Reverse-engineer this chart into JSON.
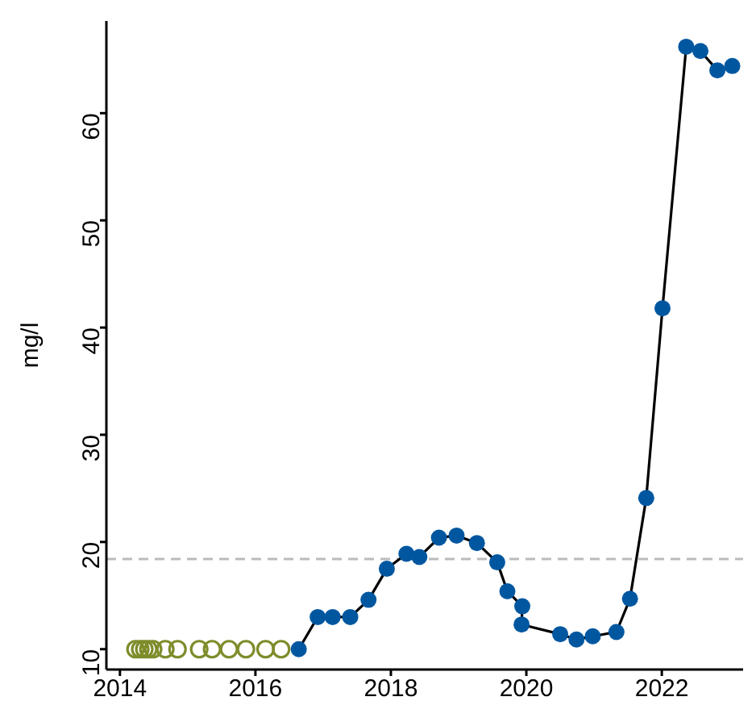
{
  "chart_data": {
    "type": "line",
    "ylabel": "mg/l",
    "xlim": [
      2013.8,
      2023.2
    ],
    "xticks": [
      2014,
      2016,
      2018,
      2020,
      2022
    ],
    "ylim": [
      8.1,
      68.6
    ],
    "yticks": [
      10,
      20,
      30,
      40,
      50,
      60
    ],
    "grid": false,
    "legend": false,
    "marker": "circle",
    "line_style": "solid",
    "series": [
      {
        "type": "scatter",
        "color": "#7f8c2a",
        "x": [
          2014.23,
          2014.3,
          2014.36,
          2014.42,
          2014.49,
          2014.67,
          2014.85,
          2015.17,
          2015.36,
          2015.61,
          2015.86,
          2016.15,
          2016.38
        ],
        "values": [
          10,
          10,
          10,
          10,
          10,
          10,
          10,
          10,
          10,
          10,
          10,
          10,
          10
        ]
      },
      {
        "color": "#0057a0",
        "x": [
          2016.64,
          2016.92,
          2017.14,
          2017.4,
          2017.67,
          2017.94,
          2018.23,
          2018.42,
          2018.71,
          2018.97,
          2019.27,
          2019.57,
          2019.72,
          2019.94,
          2019.93,
          2020.5,
          2020.74,
          2020.98,
          2021.33,
          2021.53,
          2021.77,
          2022.01,
          2022.36,
          2022.57,
          2022.82,
          2023.04
        ],
        "values": [
          10,
          13,
          13,
          13,
          14.6,
          17.5,
          18.9,
          18.6,
          20.4,
          20.6,
          19.9,
          18.1,
          15.4,
          14,
          12.3,
          11.4,
          10.9,
          11.2,
          11.6,
          14.7,
          24.1,
          41.8,
          66.2,
          65.8,
          64,
          64.4
        ]
      }
    ],
    "ref_lines": [
      {
        "axis": "y",
        "value": 18.4,
        "color": "#bbbbbb",
        "line_style": "dashed"
      }
    ]
  }
}
